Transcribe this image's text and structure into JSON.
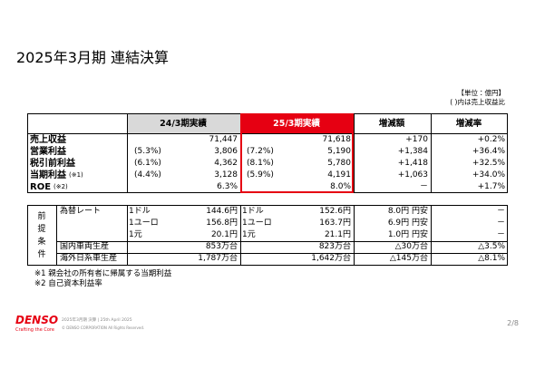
{
  "title": "2025年3月期 連結決算",
  "unit_note": [
    "【単位：億円】",
    "( )内は売上収益比"
  ],
  "table1": {
    "columns": [
      "24/3期実績",
      "25/3期実績",
      "増減額",
      "増減率"
    ],
    "rows": [
      {
        "label": "売上収益",
        "prev": "71,447",
        "cur": "71,618",
        "diff": "+170",
        "rate": "+0.2%"
      },
      {
        "label": "営業利益",
        "prev_ratio": "(5.3%)",
        "prev": "3,806",
        "cur_ratio": "(7.2%)",
        "cur": "5,190",
        "diff": "+1,384",
        "rate": "+36.4%"
      },
      {
        "label": "税引前利益",
        "prev_ratio": "(6.1%)",
        "prev": "4,362",
        "cur_ratio": "(8.1%)",
        "cur": "5,780",
        "diff": "+1,418",
        "rate": "+32.5%"
      },
      {
        "label": "当期利益",
        "note": "(※1)",
        "prev_ratio": "(4.4%)",
        "prev": "3,128",
        "cur_ratio": "(5.9%)",
        "cur": "4,191",
        "diff": "+1,063",
        "rate": "+34.0%"
      },
      {
        "label": "ROE",
        "note": "(※2)",
        "prev": "6.3%",
        "cur": "8.0%",
        "diff": "－",
        "rate": "+1.7%"
      }
    ]
  },
  "table2": {
    "side_label": [
      "前",
      "提",
      "条",
      "件"
    ],
    "rows": [
      {
        "label": "為替レート",
        "prev_unit": "1ドル",
        "prev": "144.6円",
        "cur_unit": "1ドル",
        "cur": "152.6円",
        "diff": "8.0円 円安",
        "rate": "－"
      },
      {
        "prev_unit": "1ユーロ",
        "prev": "156.8円",
        "cur_unit": "1ユーロ",
        "cur": "163.7円",
        "diff": "6.9円 円安",
        "rate": "－"
      },
      {
        "prev_unit": "1元",
        "prev": "20.1円",
        "cur_unit": "1元",
        "cur": "21.1円",
        "diff": "1.0円 円安",
        "rate": "－"
      },
      {
        "label": "国内車両生産",
        "prev": "853万台",
        "cur": "823万台",
        "diff": "△30万台",
        "rate": "△3.5%"
      },
      {
        "label": "海外日系車生産",
        "prev": "1,787万台",
        "cur": "1,642万台",
        "diff": "△145万台",
        "rate": "△8.1%"
      }
    ]
  },
  "footnotes": [
    "※1 親会社の所有者に帰属する当期利益",
    "※2 自己資本利益率"
  ],
  "footer": {
    "logo": "DENSO",
    "tagline": "Crafting the Core",
    "doc": "2025年3月期 決算 | 25th April 2025",
    "copyright": "© DENSO CORPORATION All Rights Reserved.",
    "page": "2/8"
  }
}
